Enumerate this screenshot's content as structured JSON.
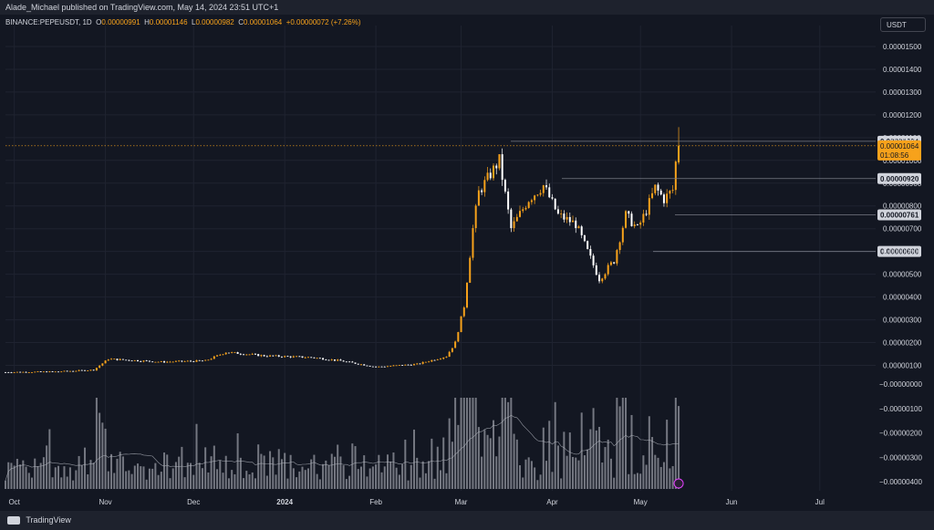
{
  "header": {
    "published": "Alade_Michael published on TradingView.com, May 14, 2024 23:51 UTC+1",
    "symbol": "BINANCE:PEPEUSDT, 1D",
    "o_label": "O",
    "o_value": "0.00000991",
    "h_label": "H",
    "h_value": "0.00001146",
    "l_label": "L",
    "l_value": "0.00000982",
    "c_label": "C",
    "c_value": "0.00001064",
    "change": "+0.00000072 (+7.26%)"
  },
  "currency_button": "USDT",
  "footer": {
    "brand": "TradingView"
  },
  "colors": {
    "background": "#131722",
    "up": "#f7a21b",
    "down": "#ffffff",
    "level_line": "#787b86",
    "volume": "#9598a1",
    "price_tag": "#f7a21b"
  },
  "chart_data": {
    "type": "candlestick",
    "symbol": "BINANCE:PEPEUSDT",
    "interval": "1D",
    "x_ticks": [
      "Oct",
      "Nov",
      "Dec",
      "2024",
      "Feb",
      "Mar",
      "Apr",
      "May",
      "Jun",
      "Jul"
    ],
    "y_ticks": [
      "0.00001500",
      "0.00001400",
      "0.00001300",
      "0.00001200",
      "0.00001100",
      "0.00001000",
      "0.00000900",
      "0.00000800",
      "0.00000700",
      "0.00000600",
      "0.00000500",
      "0.00000400",
      "0.00000300",
      "0.00000200",
      "0.00000100"
    ],
    "y_ticks_volume": [
      "−0.00000000",
      "−0.00000100",
      "−0.00000200",
      "−0.00000300",
      "−0.00000400"
    ],
    "ylim": [
      7e-07,
      1.56e-05
    ],
    "horizontal_levels": [
      {
        "label": "0.00001084",
        "value": 1.084e-05
      },
      {
        "label": "0.00000920",
        "value": 9.2e-06
      },
      {
        "label": "0.00000761",
        "value": 7.61e-06
      },
      {
        "label": "0.00000600",
        "value": 6e-06
      }
    ],
    "current_price": {
      "label": "0.00001064",
      "value": 1.064e-05,
      "countdown": "01:08:56"
    },
    "price_path": [
      [
        "2023-09-28",
        7e-07
      ],
      [
        "2023-10-15",
        7.2e-07
      ],
      [
        "2023-10-28",
        8e-07
      ],
      [
        "2023-11-02",
        1.28e-06
      ],
      [
        "2023-11-20",
        1.15e-06
      ],
      [
        "2023-12-05",
        1.2e-06
      ],
      [
        "2023-12-12",
        1.58e-06
      ],
      [
        "2023-12-25",
        1.42e-06
      ],
      [
        "2024-01-10",
        1.35e-06
      ],
      [
        "2024-01-20",
        1.2e-06
      ],
      [
        "2024-02-01",
        9.3e-07
      ],
      [
        "2024-02-15",
        1.05e-06
      ],
      [
        "2024-02-25",
        1.4e-06
      ],
      [
        "2024-02-28",
        2e-06
      ],
      [
        "2024-03-02",
        3.6e-06
      ],
      [
        "2024-03-05",
        7e-06
      ],
      [
        "2024-03-07",
        8.6e-06
      ],
      [
        "2024-03-10",
        9.2e-06
      ],
      [
        "2024-03-14",
        1e-05
      ],
      [
        "2024-03-18",
        7e-06
      ],
      [
        "2024-03-24",
        8.3e-06
      ],
      [
        "2024-03-29",
        8.9e-06
      ],
      [
        "2024-04-03",
        7.6e-06
      ],
      [
        "2024-04-09",
        7.2e-06
      ],
      [
        "2024-04-13",
        6e-06
      ],
      [
        "2024-04-17",
        4.8e-06
      ],
      [
        "2024-04-22",
        5.6e-06
      ],
      [
        "2024-04-26",
        7.6e-06
      ],
      [
        "2024-04-30",
        7e-06
      ],
      [
        "2024-05-03",
        7.8e-06
      ],
      [
        "2024-05-06",
        8.8e-06
      ],
      [
        "2024-05-09",
        8.3e-06
      ],
      [
        "2024-05-12",
        8.7e-06
      ],
      [
        "2024-05-13",
        9.91e-06
      ],
      [
        "2024-05-14",
        1.064e-05
      ]
    ]
  }
}
